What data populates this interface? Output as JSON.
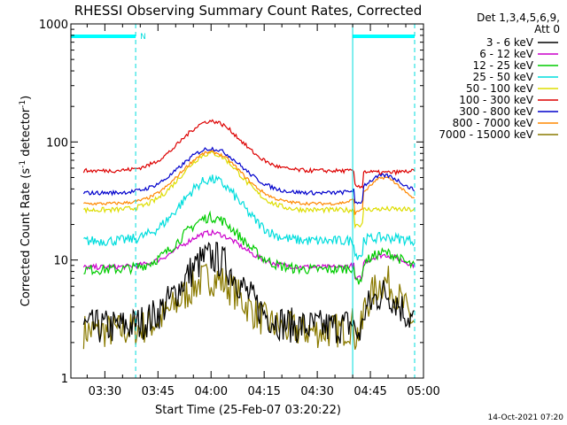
{
  "chart_data": {
    "type": "line",
    "title": "RHESSI Observing Summary Count Rates, Corrected",
    "xlabel": "Start Time (25-Feb-07 03:20:22)",
    "ylabel_main": "Corrected Count Rate (s",
    "ylabel_sup1": "-1",
    "ylabel_mid": " detector",
    "ylabel_sup2": "-1",
    "ylabel_end": ")",
    "y_scale": "log",
    "ylim": [
      1,
      1000
    ],
    "y_ticks": [
      "1",
      "10",
      "100",
      "1000"
    ],
    "x_tick_labels": [
      "03:30",
      "03:45",
      "04:00",
      "04:15",
      "04:30",
      "04:45",
      "05:00"
    ],
    "x_tick_minutes": [
      30,
      45,
      60,
      75,
      90,
      105,
      120
    ],
    "xlim_minutes": [
      20.4,
      120.0
    ],
    "legend_header": [
      "Det 1,3,4,5,6,9,",
      "Att 0"
    ],
    "legend_position": "right",
    "timestamp": "14-Oct-2021 07:20",
    "night_markers": [
      {
        "start": 20.4,
        "end": 38.7,
        "label": "N"
      },
      {
        "start": 100.0,
        "end": 117.5,
        "label": ""
      }
    ],
    "series": [
      {
        "name": "3 - 6 keV",
        "color": "#000000",
        "base": 2.7,
        "peak": 10.5,
        "second": 5.2,
        "jitter": 0.35
      },
      {
        "name": "6 - 12 keV",
        "color": "#cc00cc",
        "base": 8.7,
        "peak": 17.0,
        "second": 11.0,
        "jitter": 0.05
      },
      {
        "name": "12 - 25 keV",
        "color": "#00cc00",
        "base": 8.3,
        "peak": 23.0,
        "second": 11.5,
        "jitter": 0.1
      },
      {
        "name": "25 - 50 keV",
        "color": "#00dddd",
        "base": 14.5,
        "peak": 48.0,
        "second": 15.5,
        "jitter": 0.1
      },
      {
        "name": "50 - 100 keV",
        "color": "#dddd00",
        "base": 26.5,
        "peak": 80.0,
        "second": 27.0,
        "jitter": 0.05
      },
      {
        "name": "100 - 300 keV",
        "color": "#dd0000",
        "base": 57.0,
        "peak": 150.0,
        "second": 55.0,
        "jitter": 0.04
      },
      {
        "name": "300 - 800 keV",
        "color": "#0000cc",
        "base": 37.0,
        "peak": 88.0,
        "second": 52.0,
        "jitter": 0.04
      },
      {
        "name": "800 - 7000 keV",
        "color": "#ff8800",
        "base": 30.0,
        "peak": 82.0,
        "second": 50.0,
        "jitter": 0.03
      },
      {
        "name": "7000 - 15000 keV",
        "color": "#8a7a00",
        "base": 2.5,
        "peak": 7.0,
        "second": 6.5,
        "jitter": 0.35
      }
    ]
  }
}
